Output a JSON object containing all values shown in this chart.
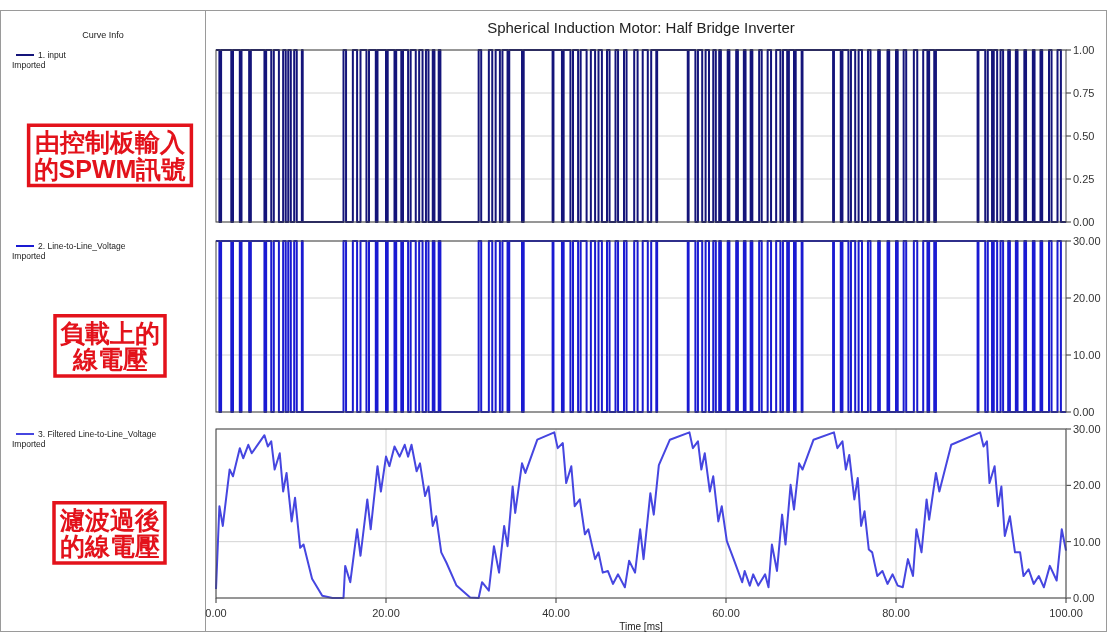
{
  "chart_data": [
    {
      "type": "step",
      "title": "Spherical Induction Motor: Half Bridge Inverter",
      "legend_title": "Curve Info",
      "legend": "left",
      "grid": "y",
      "tick_labels": "y",
      "xlim": [
        0,
        100
      ],
      "ylim": [
        0,
        1
      ],
      "yticks": [
        {
          "value": 0,
          "label": "0.00"
        },
        {
          "value": 0.25,
          "label": "0.25"
        },
        {
          "value": 0.5,
          "label": "0.50"
        },
        {
          "value": 0.75,
          "label": "0.75"
        },
        {
          "value": 1,
          "label": "1.00"
        }
      ],
      "annotations": [
        "由控制板輸入",
        "的SPWM訊號"
      ],
      "series": [
        {
          "name": "1. input\nImported",
          "color": "#14147a",
          "x": [
            0,
            0.4,
            0.6,
            1.8,
            2.0,
            2.8,
            3.0,
            3.9,
            4.1,
            5.7,
            5.9,
            6.5,
            6.8,
            7.4,
            7.9,
            8.2,
            8.5,
            8.8,
            9.2,
            9.5,
            10.1,
            10.2,
            15.0,
            15.3,
            16.1,
            16.6,
            17.0,
            17.7,
            18.0,
            18.8,
            19.0,
            20.0,
            20.2,
            21.0,
            21.2,
            21.8,
            22.0,
            22.6,
            22.9,
            23.5,
            23.9,
            24.3,
            24.7,
            25.0,
            25.5,
            25.7,
            26.2,
            26.4,
            30.9,
            31.2,
            32.1,
            32.5,
            32.9,
            33.4,
            33.7,
            34.3,
            34.5,
            36.0,
            36.2,
            39.6,
            39.7,
            40.7,
            40.9,
            41.7,
            42.0,
            42.6,
            42.9,
            43.6,
            44.1,
            44.6,
            45.0,
            45.4,
            46.0,
            46.3,
            47.0,
            47.3,
            48.0,
            48.3,
            49.2,
            49.6,
            50.2,
            50.8,
            51.2,
            51.8,
            51.9,
            55.5,
            55.6,
            56.4,
            56.7,
            57.2,
            57.6,
            58.0,
            58.5,
            58.8,
            59.2,
            59.4,
            60.2,
            60.4,
            61.2,
            61.4,
            62.1,
            62.3,
            62.9,
            63.1,
            63.9,
            64.2,
            64.9,
            65.3,
            65.9,
            66.4,
            66.7,
            67.2,
            67.4,
            68.0,
            68.2,
            68.9,
            69.0,
            72.6,
            72.7,
            73.5,
            73.7,
            74.4,
            74.7,
            75.2,
            75.6,
            76.0,
            76.7,
            77.0,
            77.9,
            78.1,
            79.0,
            79.2,
            80.0,
            80.2,
            80.9,
            81.2,
            82.1,
            82.5,
            83.2,
            83.7,
            83.9,
            84.5,
            84.7,
            89.6,
            89.7,
            90.5,
            90.8,
            91.3,
            91.5,
            91.9,
            92.3,
            92.6,
            93.2,
            93.4,
            94.1,
            94.3,
            95.1,
            95.3,
            96.1,
            96.3,
            97.0,
            97.2,
            98.0,
            98.3,
            99.0,
            99.4,
            100
          ],
          "values": [
            1,
            0,
            1,
            0,
            1,
            0,
            1,
            0,
            1,
            0,
            1,
            0,
            1,
            0,
            1,
            0,
            1,
            0,
            1,
            0,
            1,
            0,
            1,
            0,
            1,
            0,
            1,
            0,
            1,
            0,
            1,
            0,
            1,
            0,
            1,
            0,
            1,
            0,
            1,
            0,
            1,
            0,
            1,
            0,
            1,
            0,
            1,
            0,
            1,
            0,
            1,
            0,
            1,
            0,
            1,
            0,
            1,
            0,
            1,
            0,
            1,
            0,
            1,
            0,
            1,
            0,
            1,
            0,
            1,
            0,
            1,
            0,
            1,
            0,
            1,
            0,
            1,
            0,
            1,
            0,
            1,
            0,
            1,
            0,
            1,
            0,
            1,
            0,
            1,
            0,
            1,
            0,
            1,
            0,
            1,
            0,
            1,
            0,
            1,
            0,
            1,
            0,
            1,
            0,
            1,
            0,
            1,
            0,
            1,
            0,
            1,
            0,
            1,
            0,
            1,
            0,
            1,
            0,
            1,
            0,
            1,
            0,
            1,
            0,
            1,
            0,
            1,
            0,
            1,
            0,
            1,
            0,
            1,
            0,
            1,
            0,
            1,
            0,
            1,
            0,
            1,
            0,
            1,
            0,
            1,
            0,
            1,
            0,
            1,
            0,
            1,
            0,
            1,
            0,
            1,
            0,
            1,
            0,
            1,
            0,
            1,
            0,
            1,
            0,
            1,
            0,
            0
          ]
        }
      ]
    },
    {
      "type": "step",
      "legend": "left",
      "grid": "y",
      "tick_labels": "y",
      "xlim": [
        0,
        100
      ],
      "ylim": [
        0,
        30
      ],
      "yticks": [
        {
          "value": 0,
          "label": "0.00"
        },
        {
          "value": 10,
          "label": "10.00"
        },
        {
          "value": 20,
          "label": "20.00"
        },
        {
          "value": 30,
          "label": "30.00"
        }
      ],
      "annotations": [
        "負載上的",
        "線電壓"
      ],
      "series": [
        {
          "name": "2. Line-to-Line_Voltage\nImported",
          "color": "#1a1ad2",
          "x": [
            0,
            0.4,
            0.6,
            1.8,
            2.0,
            2.8,
            3.0,
            3.9,
            4.1,
            5.7,
            5.9,
            6.5,
            6.8,
            7.4,
            7.9,
            8.2,
            8.5,
            8.8,
            9.2,
            9.5,
            10.1,
            10.2,
            15.0,
            15.3,
            16.1,
            16.6,
            17.0,
            17.7,
            18.0,
            18.8,
            19.0,
            20.0,
            20.2,
            21.0,
            21.2,
            21.8,
            22.0,
            22.6,
            22.9,
            23.5,
            23.9,
            24.3,
            24.7,
            25.0,
            25.5,
            25.7,
            26.2,
            26.4,
            30.9,
            31.2,
            32.1,
            32.5,
            32.9,
            33.4,
            33.7,
            34.3,
            34.5,
            36.0,
            36.2,
            39.6,
            39.7,
            40.7,
            40.9,
            41.7,
            42.0,
            42.6,
            42.9,
            43.6,
            44.1,
            44.6,
            45.0,
            45.4,
            46.0,
            46.3,
            47.0,
            47.3,
            48.0,
            48.3,
            49.2,
            49.6,
            50.2,
            50.8,
            51.2,
            51.8,
            51.9,
            55.5,
            55.6,
            56.4,
            56.7,
            57.2,
            57.6,
            58.0,
            58.5,
            58.8,
            59.2,
            59.4,
            60.2,
            60.4,
            61.2,
            61.4,
            62.1,
            62.3,
            62.9,
            63.1,
            63.9,
            64.2,
            64.9,
            65.3,
            65.9,
            66.4,
            66.7,
            67.2,
            67.4,
            68.0,
            68.2,
            68.9,
            69.0,
            72.6,
            72.7,
            73.5,
            73.7,
            74.4,
            74.7,
            75.2,
            75.6,
            76.0,
            76.7,
            77.0,
            77.9,
            78.1,
            79.0,
            79.2,
            80.0,
            80.2,
            80.9,
            81.2,
            82.1,
            82.5,
            83.2,
            83.7,
            83.9,
            84.5,
            84.7,
            89.6,
            89.7,
            90.5,
            90.8,
            91.3,
            91.5,
            91.9,
            92.3,
            92.6,
            93.2,
            93.4,
            94.1,
            94.3,
            95.1,
            95.3,
            96.1,
            96.3,
            97.0,
            97.2,
            98.0,
            98.3,
            99.0,
            99.4,
            100
          ],
          "values": [
            30,
            0,
            30,
            0,
            30,
            0,
            30,
            0,
            30,
            0,
            30,
            0,
            30,
            0,
            30,
            0,
            30,
            0,
            30,
            0,
            30,
            0,
            30,
            0,
            30,
            0,
            30,
            0,
            30,
            0,
            30,
            0,
            30,
            0,
            30,
            0,
            30,
            0,
            30,
            0,
            30,
            0,
            30,
            0,
            30,
            0,
            30,
            0,
            30,
            0,
            30,
            0,
            30,
            0,
            30,
            0,
            30,
            0,
            30,
            0,
            30,
            0,
            30,
            0,
            30,
            0,
            30,
            0,
            30,
            0,
            30,
            0,
            30,
            0,
            30,
            0,
            30,
            0,
            30,
            0,
            30,
            0,
            30,
            0,
            30,
            0,
            30,
            0,
            30,
            0,
            30,
            0,
            30,
            0,
            30,
            0,
            30,
            0,
            30,
            0,
            30,
            0,
            30,
            0,
            30,
            0,
            30,
            0,
            30,
            0,
            30,
            0,
            30,
            0,
            30,
            0,
            30,
            0,
            30,
            0,
            30,
            0,
            30,
            0,
            30,
            0,
            30,
            0,
            30,
            0,
            30,
            0,
            30,
            0,
            30,
            0,
            30,
            0,
            30,
            0,
            30,
            0,
            30,
            0,
            30,
            0,
            30,
            0,
            30,
            0,
            30,
            0,
            30,
            0,
            30,
            0,
            30,
            0,
            30,
            0,
            30,
            0,
            30,
            0,
            30,
            0,
            0
          ]
        }
      ]
    },
    {
      "type": "line",
      "legend": "left",
      "grid": true,
      "xlabel": "Time [ms]",
      "xlim": [
        0,
        100
      ],
      "xticks": [
        {
          "value": 0,
          "label": "0.00"
        },
        {
          "value": 20,
          "label": "20.00"
        },
        {
          "value": 40,
          "label": "40.00"
        },
        {
          "value": 60,
          "label": "60.00"
        },
        {
          "value": 80,
          "label": "80.00"
        },
        {
          "value": 100,
          "label": "100.00"
        }
      ],
      "ylim": [
        0,
        30
      ],
      "yticks": [
        {
          "value": 0,
          "label": "0.00"
        },
        {
          "value": 10,
          "label": "10.00"
        },
        {
          "value": 20,
          "label": "20.00"
        },
        {
          "value": 30,
          "label": "30.00"
        }
      ],
      "annotations": [
        "濾波過後",
        "的線電壓"
      ],
      "series": [
        {
          "name": "3. Filtered Line-to-Line_Voltage\nImported",
          "color": "#4646e0",
          "x": [
            0,
            0.4,
            0.8,
            1.6,
            2,
            2.8,
            3.2,
            3.8,
            4.2,
            5.7,
            6.1,
            6.5,
            6.9,
            7.5,
            7.9,
            8.3,
            8.9,
            9.3,
            9.9,
            10.3,
            11.3,
            12.5,
            13.7,
            15.0,
            15.2,
            15.8,
            16.6,
            17.0,
            17.8,
            18.2,
            19.0,
            19.4,
            20.0,
            20.4,
            21.0,
            21.6,
            22.2,
            22.6,
            23.0,
            23.6,
            24.0,
            24.6,
            25.0,
            25.5,
            25.9,
            26.5,
            27.1,
            28.3,
            29.9,
            30.9,
            31.3,
            32.1,
            32.7,
            33.3,
            33.9,
            34.3,
            34.9,
            35.2,
            36.0,
            36.4,
            37.8,
            39.8,
            40.2,
            40.8,
            41.2,
            41.8,
            42.2,
            42.8,
            43.4,
            43.8,
            44.6,
            45.0,
            45.5,
            46.1,
            46.7,
            47.3,
            48.1,
            48.6,
            49.3,
            49.9,
            50.3,
            51.1,
            51.5,
            52.1,
            53.4,
            55.7,
            56.1,
            56.7,
            57.1,
            57.5,
            58.1,
            58.5,
            59.1,
            59.5,
            60.1,
            60.9,
            61.9,
            62.2,
            62.8,
            63.2,
            63.8,
            64.6,
            65.0,
            65.4,
            66.0,
            66.6,
            67.0,
            67.6,
            68.0,
            68.6,
            69.0,
            70.3,
            72.7,
            73.1,
            73.7,
            74.1,
            74.5,
            75.1,
            75.5,
            75.9,
            76.3,
            76.8,
            77.2,
            77.8,
            78.4,
            79.0,
            79.6,
            80.2,
            80.8,
            81.4,
            82.0,
            82.4,
            83.0,
            83.6,
            83.9,
            84.7,
            85.1,
            86.5,
            89.9,
            90.3,
            90.7,
            91.0,
            91.6,
            92.0,
            92.4,
            92.8,
            93.4,
            94.0,
            94.6,
            95.0,
            95.6,
            96.2,
            96.8,
            97.4,
            98.1,
            98.9,
            99.5,
            100
          ],
          "values": [
            1.6,
            16.3,
            12.8,
            22.8,
            21.6,
            26.6,
            24.8,
            27.2,
            25.7,
            28.9,
            26.9,
            27.8,
            22.8,
            25.7,
            18.9,
            22.2,
            13.6,
            17.8,
            8.9,
            9.5,
            3.4,
            0.4,
            0,
            0,
            5.7,
            2.8,
            12.2,
            7.5,
            17.5,
            12.2,
            23.4,
            18.9,
            25.1,
            23.4,
            26.9,
            25.1,
            27.2,
            25.1,
            27.2,
            22.5,
            23.9,
            18.1,
            19.8,
            12.8,
            14.5,
            8.1,
            6.3,
            2.2,
            0.1,
            0,
            2.8,
            1.3,
            9.2,
            4.5,
            12.8,
            9.2,
            19.8,
            15.1,
            23.9,
            22.2,
            28.1,
            29.4,
            26.6,
            27.5,
            20.4,
            23.4,
            16.3,
            17.5,
            11.3,
            12.2,
            6.9,
            8.1,
            4.5,
            4.8,
            2.5,
            4.2,
            1.9,
            6.6,
            4.5,
            12.2,
            6.9,
            18.6,
            14.8,
            23.6,
            28.1,
            29.4,
            26.6,
            27.8,
            22.8,
            25.7,
            18.9,
            21.6,
            13.6,
            16.3,
            10.1,
            6.9,
            2.8,
            4.8,
            2.2,
            4.2,
            2.2,
            4.2,
            1.9,
            9.5,
            4.8,
            14.8,
            9.5,
            20.1,
            15.7,
            23.9,
            22.8,
            28.1,
            29.4,
            26.6,
            27.8,
            22.8,
            25.4,
            17.5,
            21.3,
            12.8,
            15.4,
            8.6,
            8.1,
            3.9,
            4.8,
            2.5,
            4.2,
            2.2,
            1.9,
            6.9,
            3.9,
            12.2,
            8.1,
            17.5,
            13.9,
            22.2,
            18.9,
            27.2,
            29.4,
            26.9,
            27.8,
            20.4,
            23.4,
            16.3,
            19.8,
            11.0,
            14.5,
            8.1,
            8.1,
            3.9,
            5.1,
            2.5,
            3.9,
            1.9,
            5.7,
            3.1,
            12.2,
            8.4
          ]
        }
      ]
    }
  ]
}
